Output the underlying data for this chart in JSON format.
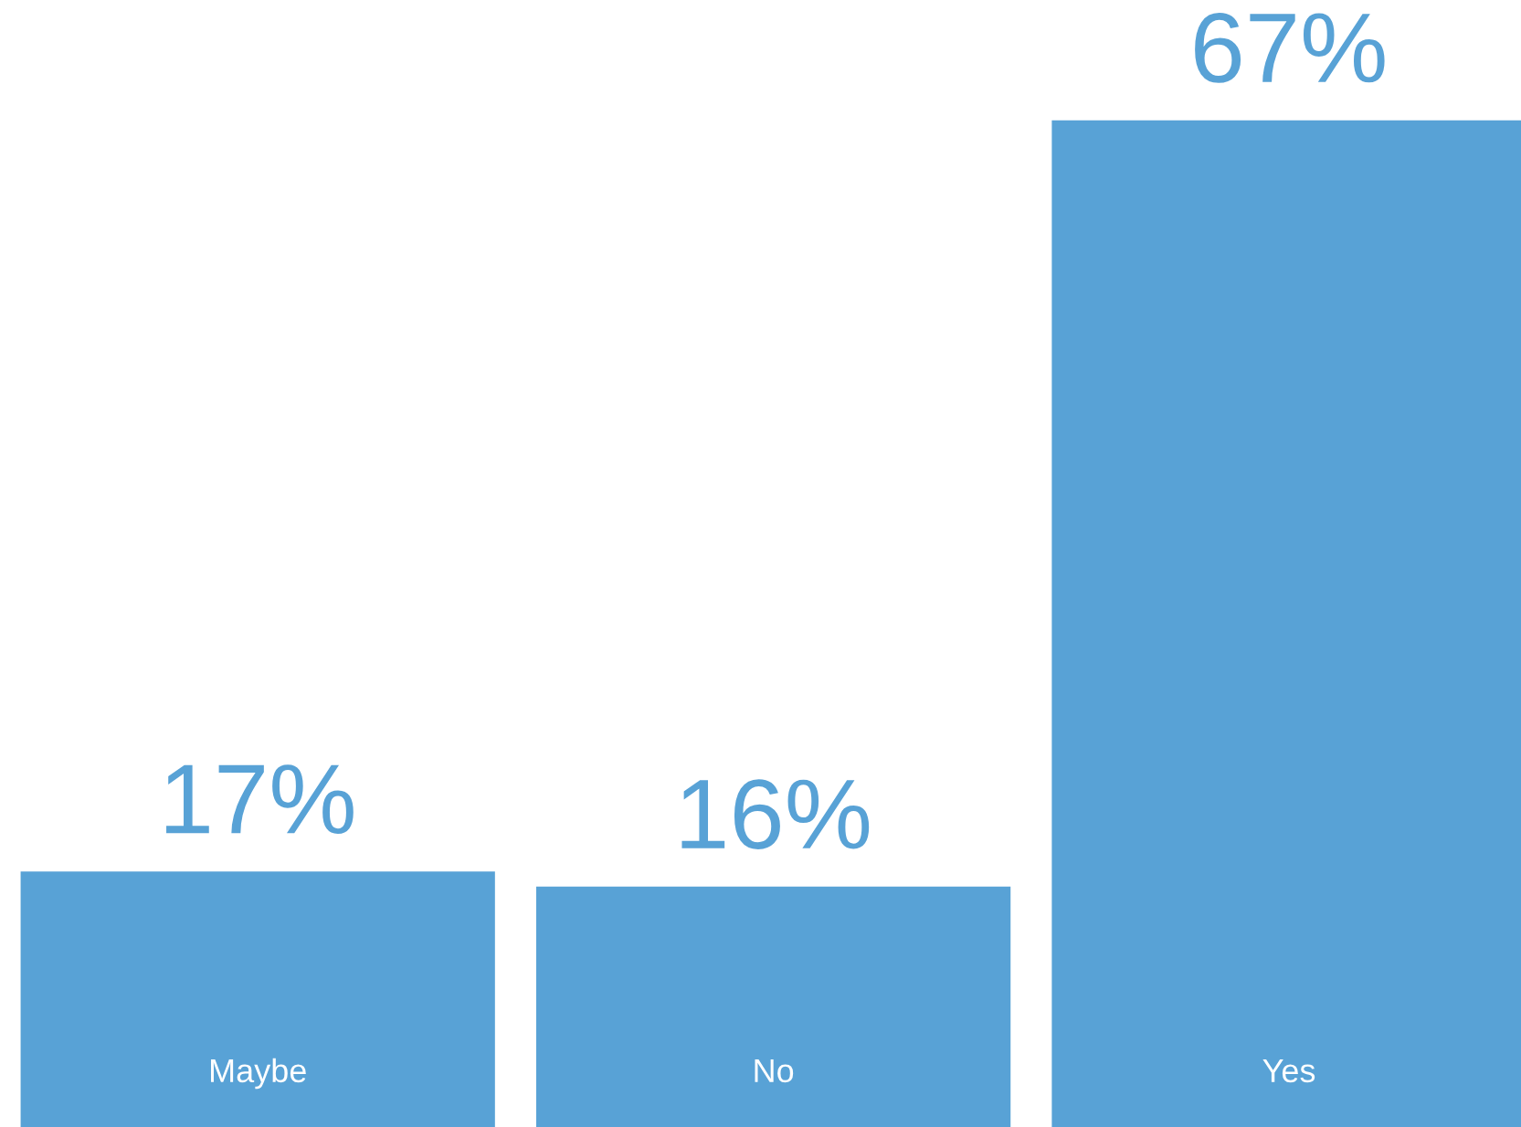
{
  "chart_data": {
    "type": "bar",
    "categories": [
      "Maybe",
      "No",
      "Yes"
    ],
    "values": [
      17,
      16,
      67
    ],
    "value_labels": [
      "17%",
      "16%",
      "67%"
    ],
    "color": "#58a2d6",
    "ylim": [
      0,
      75
    ]
  }
}
